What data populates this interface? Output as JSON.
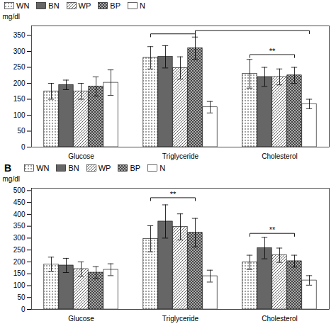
{
  "chart_data": [
    {
      "type": "bar",
      "categories": [
        "Glucose",
        "Triglyceride",
        "Cholesterol"
      ],
      "ylabel": "mg/dl",
      "ylim": [
        0,
        380
      ],
      "yticks": [
        0,
        50,
        100,
        150,
        200,
        250,
        300,
        350
      ],
      "legend": "top",
      "series": [
        {
          "name": "WN",
          "color": "white",
          "values": [
            175,
            280,
            230
          ],
          "errors": [
            25,
            35,
            45
          ]
        },
        {
          "name": "BN",
          "color": "#666666",
          "values": [
            195,
            283,
            220
          ],
          "errors": [
            15,
            35,
            30
          ]
        },
        {
          "name": "WP",
          "color": "white",
          "values": [
            175,
            248,
            220
          ],
          "errors": [
            25,
            35,
            25
          ]
        },
        {
          "name": "BP",
          "color": "#aaaaaa",
          "values": [
            190,
            310,
            225
          ],
          "errors": [
            30,
            35,
            25
          ]
        },
        {
          "name": "N",
          "color": "white",
          "values": [
            202,
            125,
            135
          ],
          "errors": [
            40,
            18,
            15
          ]
        }
      ],
      "annotations": [
        {
          "from": {
            "category": "Triglyceride",
            "series": "WN"
          },
          "to": {
            "category": "Triglyceride",
            "series": "BP"
          },
          "y": 355
        },
        {
          "from": {
            "category": "Triglyceride",
            "series": "BP"
          },
          "to": {
            "category": "Cholesterol",
            "series": "N"
          },
          "y": 365
        },
        {
          "text": "**",
          "from": {
            "category": "Cholesterol",
            "series": "WN"
          },
          "to": {
            "category": "Cholesterol",
            "series": "BP"
          },
          "y": 290
        }
      ]
    },
    {
      "type": "bar",
      "title": "B",
      "categories": [
        "Glucose",
        "Triglyceride",
        "Cholesterol"
      ],
      "ylabel": "mg/dl",
      "ylim": [
        0,
        510
      ],
      "yticks": [
        0,
        50,
        100,
        150,
        200,
        250,
        300,
        350,
        400,
        450,
        500
      ],
      "legend": "top",
      "series": [
        {
          "name": "WN",
          "color": "white",
          "values": [
            190,
            297,
            198
          ],
          "errors": [
            30,
            55,
            30
          ]
        },
        {
          "name": "BN",
          "color": "#666666",
          "values": [
            185,
            370,
            258
          ],
          "errors": [
            30,
            70,
            45
          ]
        },
        {
          "name": "WP",
          "color": "white",
          "values": [
            170,
            347,
            228
          ],
          "errors": [
            30,
            55,
            30
          ]
        },
        {
          "name": "BP",
          "color": "#aaaaaa",
          "values": [
            155,
            323,
            203
          ],
          "errors": [
            25,
            60,
            25
          ]
        },
        {
          "name": "N",
          "color": "white",
          "values": [
            167,
            140,
            122
          ],
          "errors": [
            25,
            25,
            20
          ]
        }
      ],
      "annotations": [
        {
          "text": "**",
          "from": {
            "category": "Triglyceride",
            "series": "WN"
          },
          "to": {
            "category": "Triglyceride",
            "series": "BP"
          },
          "y": 470
        },
        {
          "text": "**",
          "from": {
            "category": "Cholesterol",
            "series": "WN"
          },
          "to": {
            "category": "Cholesterol",
            "series": "BP"
          },
          "y": 320
        }
      ]
    }
  ]
}
